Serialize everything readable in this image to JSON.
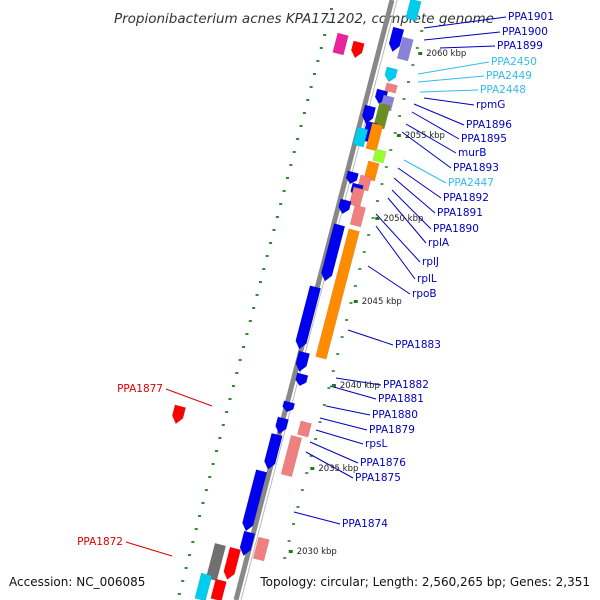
{
  "title": "Propionibacterium acnes KPA171202, complete genome",
  "footer": {
    "accession": "Accession: NC_006085",
    "topology": "Topology: circular; Length: 2,560,265 bp; Genes: 2,351"
  },
  "colors": {
    "forward_gene": "#0000ee",
    "forward_cds": "#ff8c00",
    "reverse_gene": "#ee0000",
    "trna": "#f08080",
    "rrna": "#00ccee",
    "hypothetical": "#22ccdd",
    "other_red": "#ff0000",
    "misc": "#e8239c",
    "olive": "#6b8e23",
    "lime": "#99ff33",
    "slate": "#8a82d8",
    "grey": "#707070",
    "backbone": "#888888",
    "tick": "#2e8b2e",
    "label_blue": "#0000bb",
    "label_cyan": "#33bbee",
    "label_red": "#dd0000"
  },
  "scale": [
    "2060 kbp",
    "2055 kbp",
    "2050 kbp",
    "2045 kbp",
    "2040 kbp",
    "2035 kbp",
    "2030 kbp"
  ],
  "labels": [
    {
      "text": "PPA1901",
      "type": "blue"
    },
    {
      "text": "PPA1900",
      "type": "blue"
    },
    {
      "text": "PPA1899",
      "type": "blue"
    },
    {
      "text": "PPA2450",
      "type": "cyan"
    },
    {
      "text": "PPA2449",
      "type": "cyan"
    },
    {
      "text": "PPA2448",
      "type": "cyan"
    },
    {
      "text": "rpmG",
      "type": "blue"
    },
    {
      "text": "PPA1896",
      "type": "blue"
    },
    {
      "text": "PPA1895",
      "type": "blue"
    },
    {
      "text": "murB",
      "type": "blue"
    },
    {
      "text": "PPA1893",
      "type": "blue"
    },
    {
      "text": "PPA2447",
      "type": "cyan"
    },
    {
      "text": "PPA1892",
      "type": "blue"
    },
    {
      "text": "PPA1891",
      "type": "blue"
    },
    {
      "text": "PPA1890",
      "type": "blue"
    },
    {
      "text": "rplA",
      "type": "blue"
    },
    {
      "text": "rplJ",
      "type": "blue"
    },
    {
      "text": "rplL",
      "type": "blue"
    },
    {
      "text": "rpoB",
      "type": "blue"
    },
    {
      "text": "PPA1883",
      "type": "blue"
    },
    {
      "text": "PPA1882",
      "type": "blue"
    },
    {
      "text": "PPA1881",
      "type": "blue"
    },
    {
      "text": "PPA1880",
      "type": "blue"
    },
    {
      "text": "PPA1879",
      "type": "blue"
    },
    {
      "text": "rpsL",
      "type": "blue"
    },
    {
      "text": "PPA1876",
      "type": "blue"
    },
    {
      "text": "PPA1875",
      "type": "blue"
    },
    {
      "text": "PPA1874",
      "type": "blue"
    },
    {
      "text": "PPA1877",
      "type": "red"
    },
    {
      "text": "PPA1872",
      "type": "red"
    }
  ]
}
